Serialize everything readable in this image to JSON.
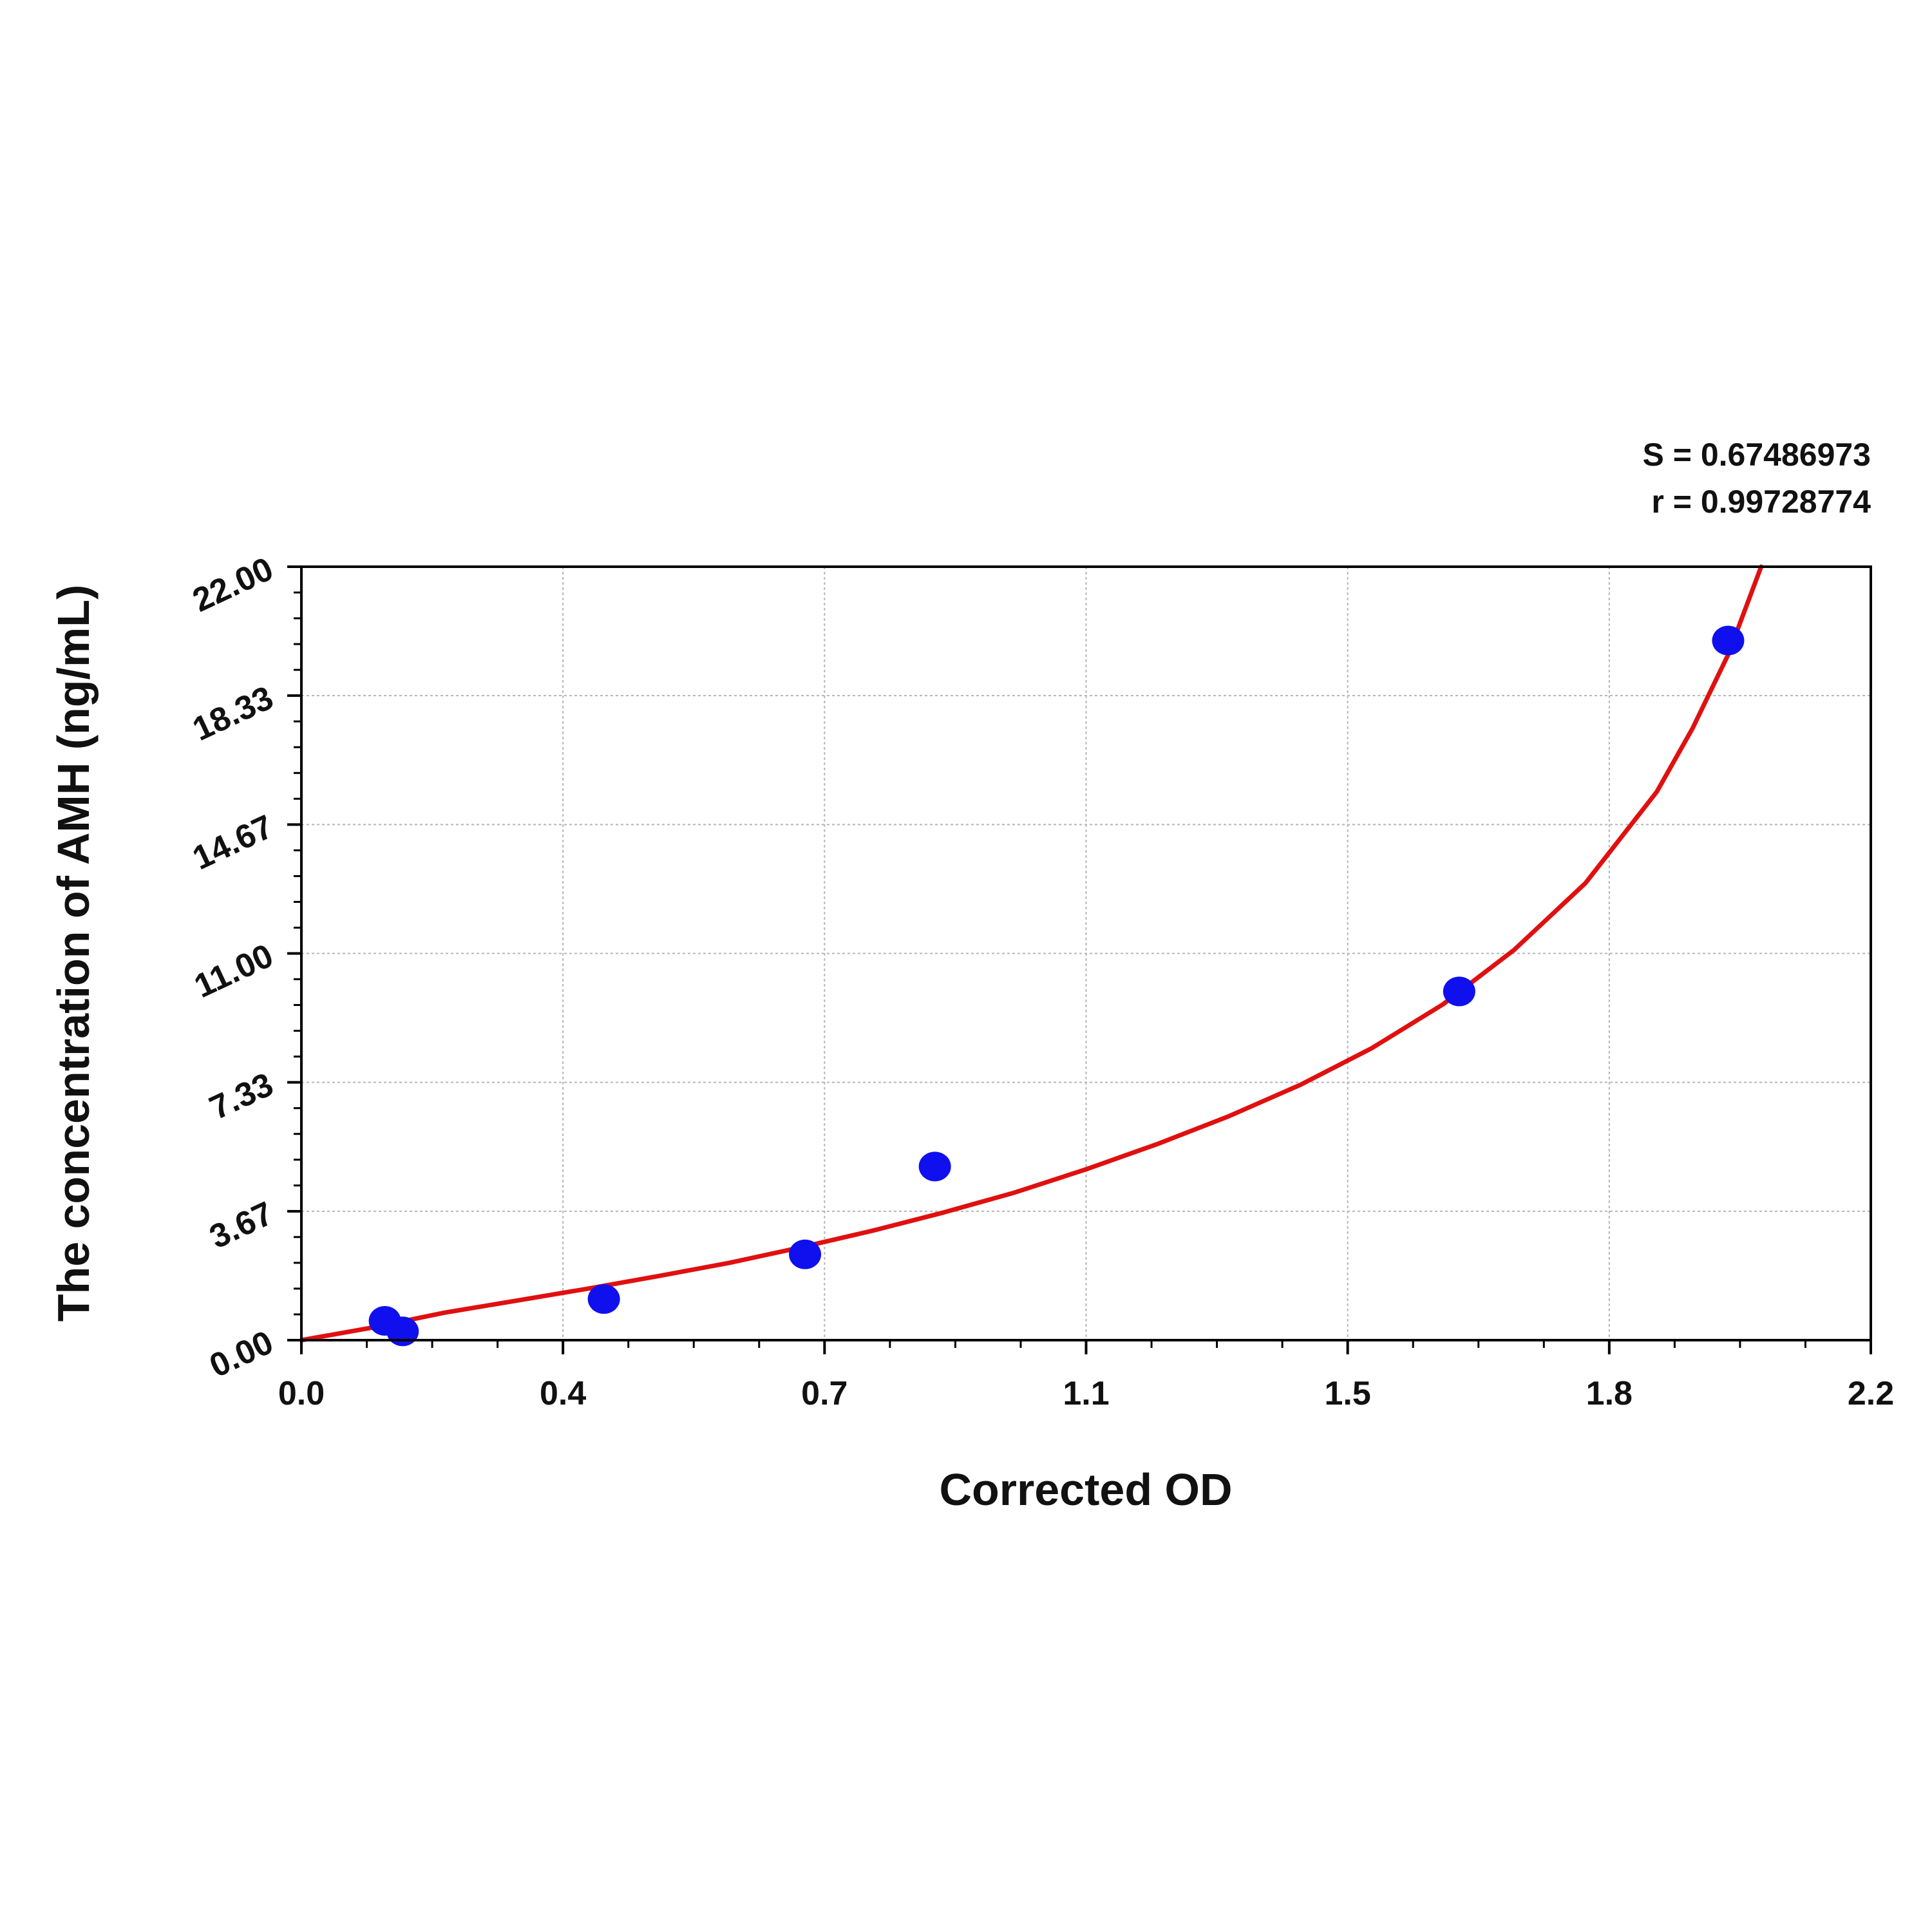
{
  "chart_data": {
    "type": "scatter",
    "title": "",
    "xlabel": "Corrected OD",
    "ylabel": "The concentration of AMH (ng/mL)",
    "annotations": [
      "S = 0.67486973",
      "r = 0.99728774"
    ],
    "x_ticks": [
      "0.0",
      "0.4",
      "0.7",
      "1.1",
      "1.5",
      "1.8",
      "2.2"
    ],
    "y_ticks": [
      "0.00",
      "3.67",
      "7.33",
      "11.00",
      "14.67",
      "18.33",
      "22.00"
    ],
    "xlim": [
      0,
      2.2
    ],
    "ylim": [
      0,
      22
    ],
    "grid": true,
    "series": [
      {
        "points": [
          {
            "x": 0.117,
            "y": 0.55
          },
          {
            "x": 0.142,
            "y": 0.25
          },
          {
            "x": 0.424,
            "y": 1.17
          },
          {
            "x": 0.706,
            "y": 2.44
          },
          {
            "x": 0.888,
            "y": 4.94
          },
          {
            "x": 1.623,
            "y": 9.92
          },
          {
            "x": 2.0,
            "y": 19.9
          }
        ],
        "color": "#1010ee"
      },
      {
        "fit_curve": [
          {
            "x": 0.0,
            "y": 0.0
          },
          {
            "x": 0.1,
            "y": 0.36
          },
          {
            "x": 0.2,
            "y": 0.78
          },
          {
            "x": 0.3,
            "y": 1.12
          },
          {
            "x": 0.4,
            "y": 1.46
          },
          {
            "x": 0.5,
            "y": 1.82
          },
          {
            "x": 0.6,
            "y": 2.2
          },
          {
            "x": 0.7,
            "y": 2.64
          },
          {
            "x": 0.8,
            "y": 3.11
          },
          {
            "x": 0.9,
            "y": 3.63
          },
          {
            "x": 1.0,
            "y": 4.2
          },
          {
            "x": 1.1,
            "y": 4.86
          },
          {
            "x": 1.2,
            "y": 5.58
          },
          {
            "x": 1.3,
            "y": 6.37
          },
          {
            "x": 1.4,
            "y": 7.26
          },
          {
            "x": 1.5,
            "y": 8.3
          },
          {
            "x": 1.6,
            "y": 9.55
          },
          {
            "x": 1.7,
            "y": 11.1
          },
          {
            "x": 1.8,
            "y": 13.0
          },
          {
            "x": 1.9,
            "y": 15.6
          },
          {
            "x": 1.95,
            "y": 17.4
          },
          {
            "x": 2.0,
            "y": 19.5
          },
          {
            "x": 2.05,
            "y": 22.2
          }
        ],
        "color": "#e01010"
      }
    ]
  }
}
